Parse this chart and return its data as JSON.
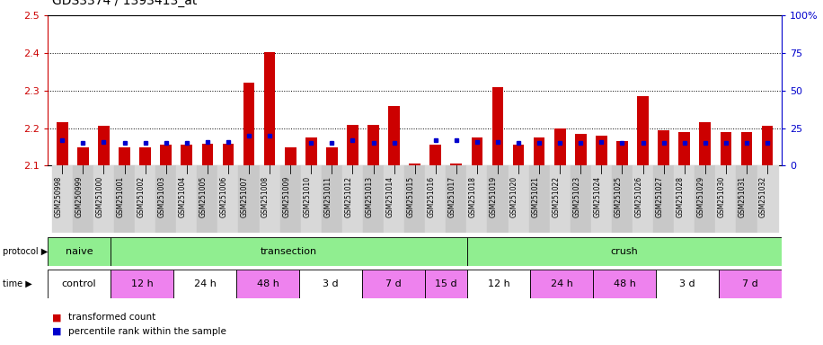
{
  "title": "GDS3374 / 1393413_at",
  "samples": [
    "GSM250998",
    "GSM250999",
    "GSM251000",
    "GSM251001",
    "GSM251002",
    "GSM251003",
    "GSM251004",
    "GSM251005",
    "GSM251006",
    "GSM251007",
    "GSM251008",
    "GSM251009",
    "GSM251010",
    "GSM251011",
    "GSM251012",
    "GSM251013",
    "GSM251014",
    "GSM251015",
    "GSM251016",
    "GSM251017",
    "GSM251018",
    "GSM251019",
    "GSM251020",
    "GSM251021",
    "GSM251022",
    "GSM251023",
    "GSM251024",
    "GSM251025",
    "GSM251026",
    "GSM251027",
    "GSM251028",
    "GSM251029",
    "GSM251030",
    "GSM251031",
    "GSM251032"
  ],
  "red_values": [
    2.215,
    2.148,
    2.205,
    2.148,
    2.148,
    2.155,
    2.155,
    2.158,
    2.158,
    2.32,
    2.402,
    2.148,
    2.175,
    2.148,
    2.208,
    2.208,
    2.26,
    2.105,
    2.155,
    2.105,
    2.175,
    2.31,
    2.155,
    2.175,
    2.2,
    2.185,
    2.18,
    2.165,
    2.285,
    2.195,
    2.19,
    2.215,
    2.19,
    2.19,
    2.205
  ],
  "blue_values": [
    17,
    15,
    16,
    15,
    15,
    15,
    15,
    16,
    16,
    20,
    20,
    null,
    15,
    15,
    17,
    15,
    15,
    null,
    17,
    17,
    16,
    16,
    15,
    15,
    15,
    15,
    16,
    15,
    15,
    15,
    15,
    15,
    15,
    15,
    15
  ],
  "baseline": 2.1,
  "ylim_left": [
    2.1,
    2.5
  ],
  "ylim_right": [
    0,
    100
  ],
  "yticks_left": [
    2.1,
    2.2,
    2.3,
    2.4,
    2.5
  ],
  "yticks_right": [
    0,
    25,
    50,
    75,
    100
  ],
  "right_tick_labels": [
    "0",
    "25",
    "50",
    "75",
    "100%"
  ],
  "protocol_spans": [
    {
      "label": "naive",
      "start": 0,
      "end": 3,
      "color": "#90EE90"
    },
    {
      "label": "transection",
      "start": 3,
      "end": 20,
      "color": "#90EE90"
    },
    {
      "label": "crush",
      "start": 20,
      "end": 35,
      "color": "#90EE90"
    }
  ],
  "time_spans": [
    {
      "label": "control",
      "start": 0,
      "end": 3,
      "color": "#ffffff"
    },
    {
      "label": "12 h",
      "start": 3,
      "end": 6,
      "color": "#EE82EE"
    },
    {
      "label": "24 h",
      "start": 6,
      "end": 9,
      "color": "#ffffff"
    },
    {
      "label": "48 h",
      "start": 9,
      "end": 12,
      "color": "#EE82EE"
    },
    {
      "label": "3 d",
      "start": 12,
      "end": 15,
      "color": "#ffffff"
    },
    {
      "label": "7 d",
      "start": 15,
      "end": 18,
      "color": "#EE82EE"
    },
    {
      "label": "15 d",
      "start": 18,
      "end": 20,
      "color": "#EE82EE"
    },
    {
      "label": "12 h",
      "start": 20,
      "end": 23,
      "color": "#ffffff"
    },
    {
      "label": "24 h",
      "start": 23,
      "end": 26,
      "color": "#EE82EE"
    },
    {
      "label": "48 h",
      "start": 26,
      "end": 29,
      "color": "#EE82EE"
    },
    {
      "label": "3 d",
      "start": 29,
      "end": 32,
      "color": "#ffffff"
    },
    {
      "label": "7 d",
      "start": 32,
      "end": 35,
      "color": "#EE82EE"
    }
  ],
  "bar_color": "#cc0000",
  "dot_color": "#0000cc",
  "title_fontsize": 10,
  "axis_color_left": "#cc0000",
  "axis_color_right": "#0000cc",
  "grid_lines": [
    2.2,
    2.3,
    2.4
  ],
  "bar_width": 0.55,
  "tick_label_bg": "#c8c8c8",
  "alt_col_bg": "#d8d8d8"
}
